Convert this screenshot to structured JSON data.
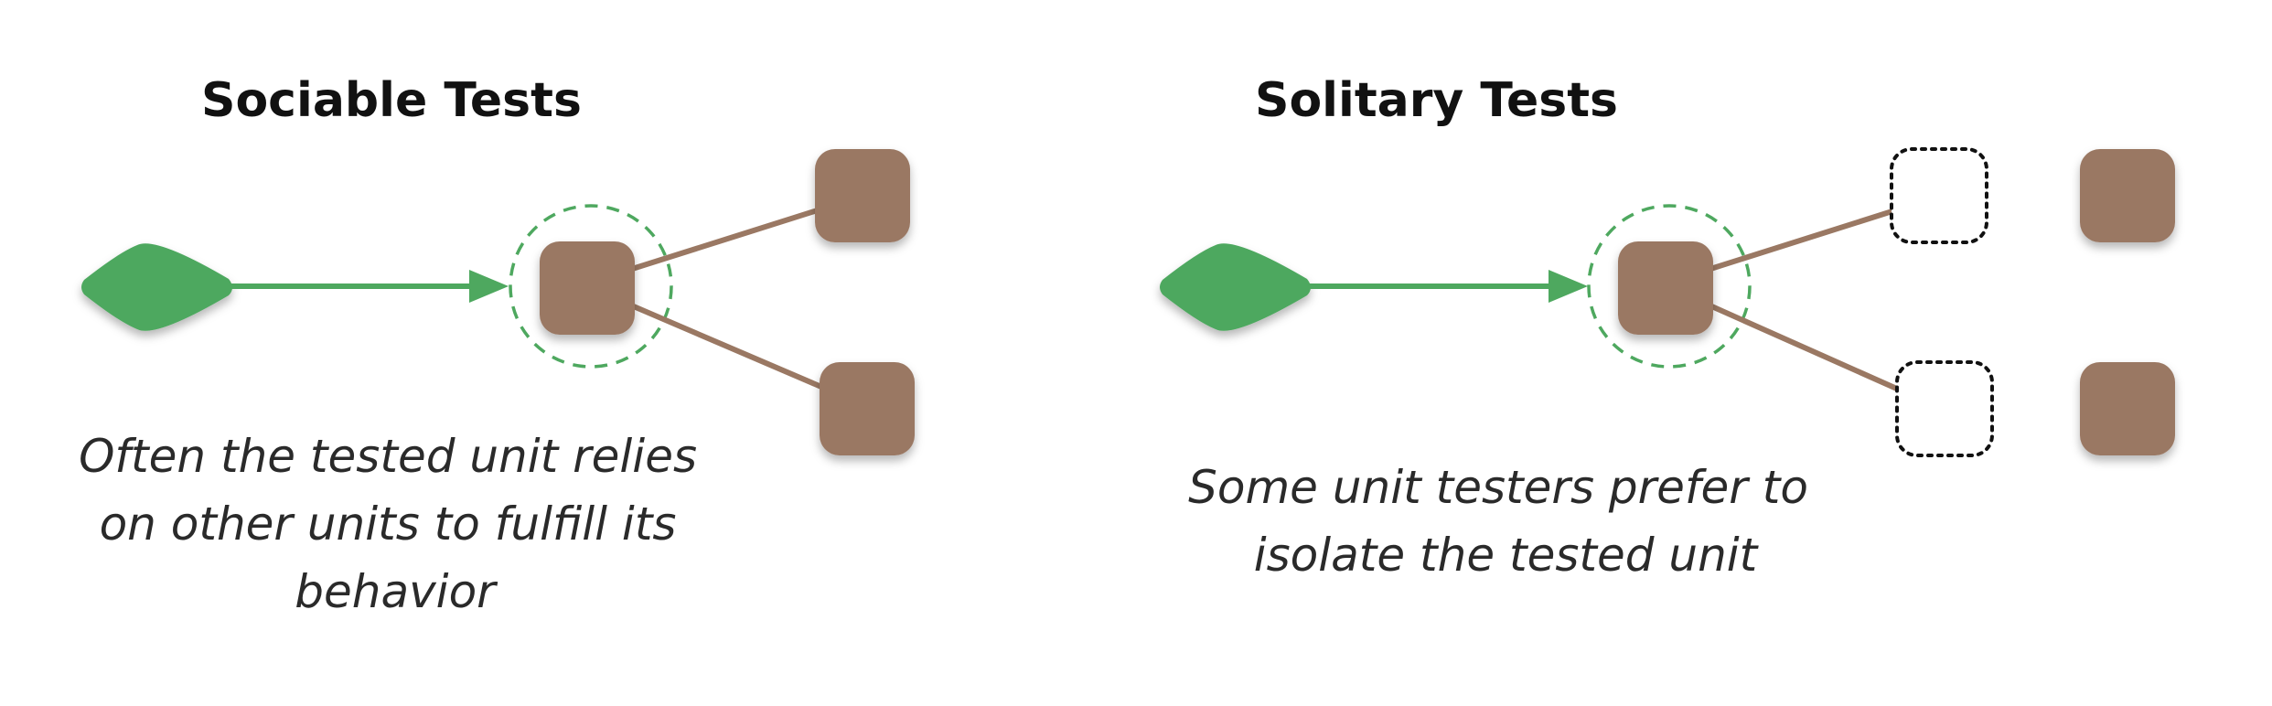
{
  "colors": {
    "green": "#4ea85f",
    "brown": "#9a7863",
    "dashed_outline": "#111111",
    "focus_ring": "#4ea85f",
    "background": "#ffffff"
  },
  "sociable": {
    "title": "Sociable Tests",
    "caption_lines": [
      "Often the tested unit relies",
      "on other units to fulfill its",
      "behavior"
    ]
  },
  "solitary": {
    "title": "Solitary Tests",
    "caption_lines": [
      "Some unit testers prefer to",
      "isolate the tested unit"
    ]
  }
}
